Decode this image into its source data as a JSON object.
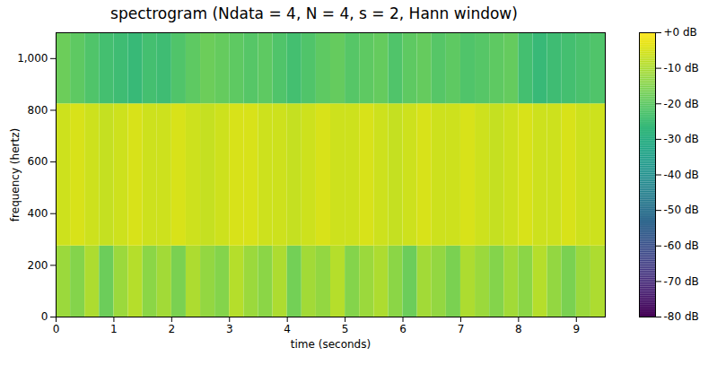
{
  "chart_data": {
    "type": "heatmap",
    "title": "spectrogram (Ndata = 4, N = 4, s = 2, Hann window)",
    "xlabel": "time (seconds)",
    "ylabel": "frequency (hertz)",
    "xlim": [
      0,
      9.5
    ],
    "ylim": [
      0,
      1100
    ],
    "xticks": [
      0,
      1,
      2,
      3,
      4,
      5,
      6,
      7,
      8,
      9
    ],
    "yticks": [
      0,
      200,
      400,
      600,
      800,
      1000
    ],
    "x_edges": [
      0,
      0.25,
      0.5,
      0.75,
      1,
      1.25,
      1.5,
      1.75,
      2,
      2.25,
      2.5,
      2.75,
      3,
      3.25,
      3.5,
      3.75,
      4,
      4.25,
      4.5,
      4.75,
      5,
      5.25,
      5.5,
      5.75,
      6,
      6.25,
      6.5,
      6.75,
      7,
      7.25,
      7.5,
      7.75,
      8,
      8.25,
      8.5,
      8.75,
      9,
      9.25,
      9.5
    ],
    "y_edges": [
      0,
      275,
      825,
      1100
    ],
    "cells": [
      [
        -12,
        -15,
        -10,
        -18,
        -12,
        -9,
        -14,
        -11,
        -16,
        -10,
        -13,
        -15,
        -9,
        -12,
        -14,
        -10,
        -17,
        -11,
        -13,
        -9,
        -15,
        -12,
        -10,
        -14,
        -18,
        -11,
        -13,
        -16,
        -10,
        -12,
        -15,
        -11,
        -14,
        -9,
        -13,
        -16,
        -12,
        -10
      ],
      [
        -6,
        -5,
        -6,
        -7,
        -6,
        -5,
        -6,
        -6,
        -5,
        -6,
        -7,
        -6,
        -5,
        -5,
        -6,
        -6,
        -7,
        -6,
        -5,
        -6,
        -6,
        -5,
        -6,
        -7,
        -6,
        -5,
        -6,
        -6,
        -5,
        -6,
        -7,
        -6,
        -5,
        -6,
        -6,
        -5,
        -6,
        -6
      ],
      [
        -18,
        -20,
        -22,
        -24,
        -25,
        -26,
        -24,
        -25,
        -22,
        -20,
        -18,
        -19,
        -20,
        -21,
        -20,
        -22,
        -24,
        -22,
        -20,
        -19,
        -21,
        -20,
        -19,
        -22,
        -20,
        -19,
        -21,
        -20,
        -22,
        -21,
        -20,
        -19,
        -24,
        -26,
        -25,
        -24,
        -23,
        -22
      ]
    ],
    "color": "viridis",
    "color_range": [
      -80,
      0
    ],
    "color_ticks": [
      {
        "value": 0,
        "label": "+0 dB"
      },
      {
        "value": -10,
        "label": "-10 dB"
      },
      {
        "value": -20,
        "label": "-20 dB"
      },
      {
        "value": -30,
        "label": "-30 dB"
      },
      {
        "value": -40,
        "label": "-40 dB"
      },
      {
        "value": -50,
        "label": "-50 dB"
      },
      {
        "value": -60,
        "label": "-60 dB"
      },
      {
        "value": -70,
        "label": "-70 dB"
      },
      {
        "value": -80,
        "label": "-80 dB"
      }
    ]
  }
}
